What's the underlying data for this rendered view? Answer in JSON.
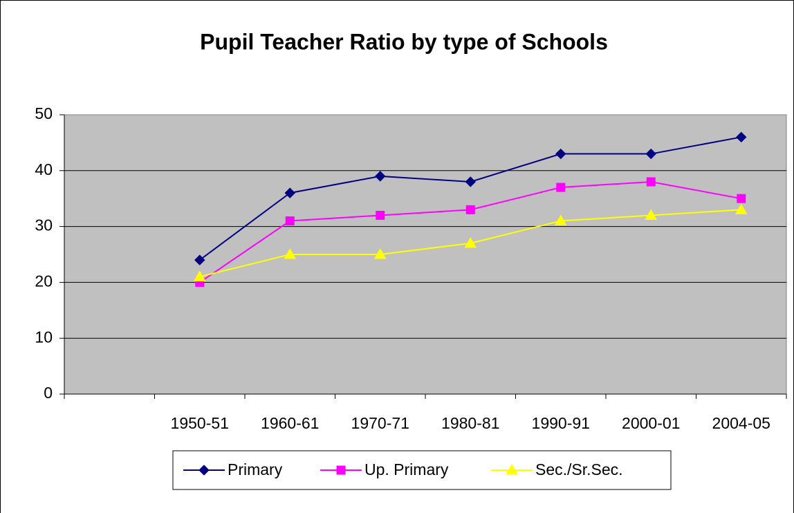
{
  "chart_data": {
    "type": "line",
    "title": "Pupil Teacher Ratio by type of Schools",
    "categories": [
      null,
      "1950-51",
      "1960-61",
      "1970-71",
      "1980-81",
      "1990-91",
      "2000-01",
      "2004-05"
    ],
    "series": [
      {
        "name": "Primary",
        "color": "#000080",
        "marker": "diamond",
        "values": [
          null,
          24,
          36,
          39,
          38,
          43,
          43,
          46
        ]
      },
      {
        "name": "Up. Primary",
        "color": "#ff00ff",
        "marker": "square",
        "values": [
          null,
          20,
          31,
          32,
          33,
          37,
          38,
          35
        ]
      },
      {
        "name": "Sec./Sr.Sec.",
        "color": "#ffff00",
        "marker": "triangle",
        "values": [
          null,
          21,
          25,
          25,
          27,
          31,
          32,
          33
        ]
      }
    ],
    "ylim": [
      0,
      50
    ],
    "yticks": [
      0,
      10,
      20,
      30,
      40,
      50
    ],
    "grid": true,
    "legend": "bottom"
  }
}
